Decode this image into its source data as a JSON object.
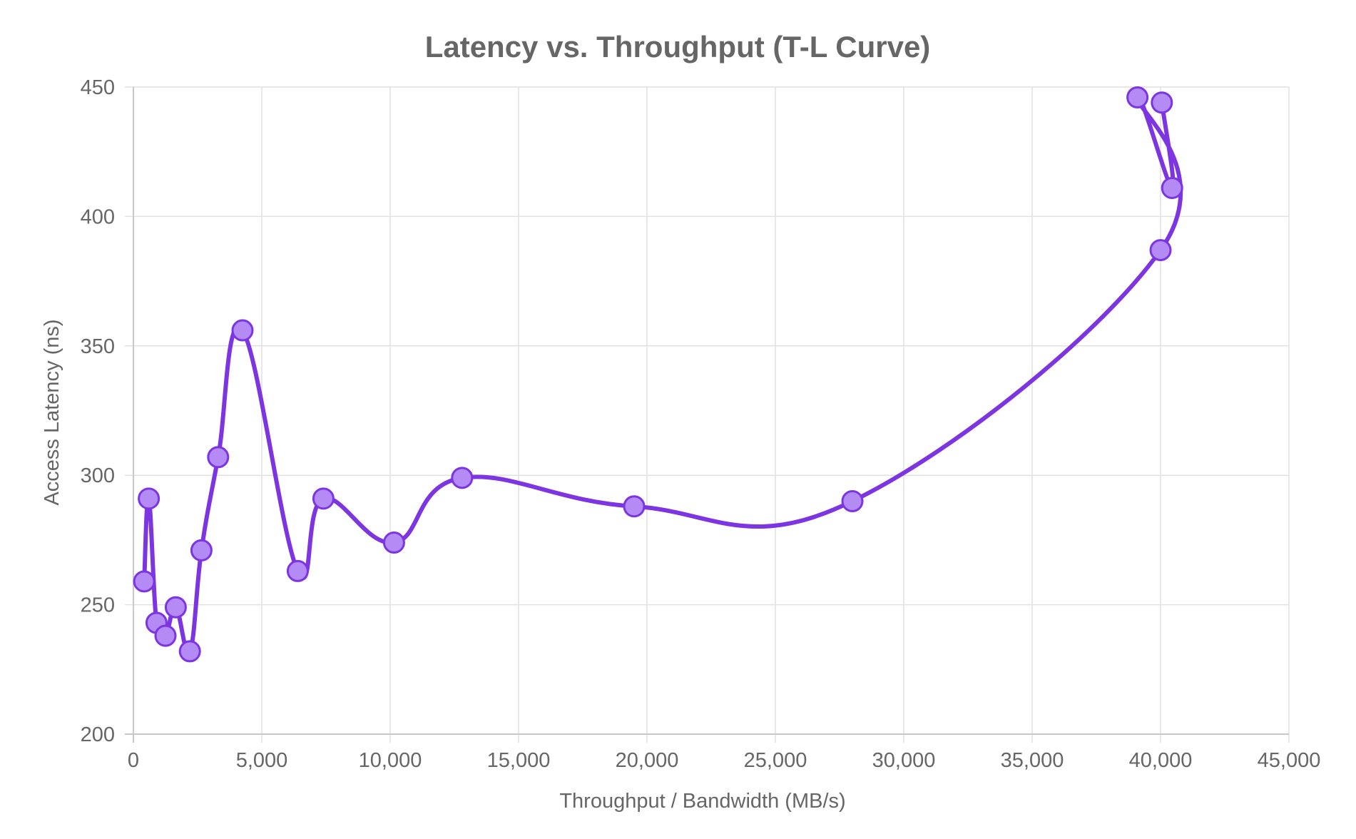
{
  "chart_data": {
    "type": "line",
    "title": "Latency vs. Throughput (T-L Curve)",
    "xlabel": "Throughput / Bandwidth (MB/s)",
    "ylabel": "Access Latency (ns)",
    "xlim": [
      0,
      45000
    ],
    "ylim": [
      200,
      450
    ],
    "x_ticks": [
      0,
      5000,
      10000,
      15000,
      20000,
      25000,
      30000,
      35000,
      40000,
      45000
    ],
    "x_tick_labels": [
      "0",
      "5,000",
      "10,000",
      "15,000",
      "20,000",
      "25,000",
      "30,000",
      "35,000",
      "40,000",
      "45,000"
    ],
    "y_ticks": [
      200,
      250,
      300,
      350,
      400,
      450
    ],
    "y_tick_labels": [
      "200",
      "250",
      "300",
      "350",
      "400",
      "450"
    ],
    "grid": true,
    "legend": "none",
    "smooth": true,
    "colors": {
      "line": "#7c35e0",
      "point_fill": "#b48af5",
      "point_stroke": "#7c35e0"
    },
    "series": [
      {
        "points": [
          {
            "x": 420,
            "y": 259
          },
          {
            "x": 600,
            "y": 291
          },
          {
            "x": 900,
            "y": 243
          },
          {
            "x": 1250,
            "y": 238
          },
          {
            "x": 1650,
            "y": 249
          },
          {
            "x": 2200,
            "y": 232
          },
          {
            "x": 2650,
            "y": 271
          },
          {
            "x": 3300,
            "y": 307
          },
          {
            "x": 4250,
            "y": 356
          },
          {
            "x": 6400,
            "y": 263
          },
          {
            "x": 7400,
            "y": 291
          },
          {
            "x": 10150,
            "y": 274
          },
          {
            "x": 12800,
            "y": 299
          },
          {
            "x": 19500,
            "y": 288
          },
          {
            "x": 28000,
            "y": 290
          },
          {
            "x": 40000,
            "y": 387
          },
          {
            "x": 39100,
            "y": 446
          },
          {
            "x": 40450,
            "y": 411
          },
          {
            "x": 40050,
            "y": 444
          }
        ]
      }
    ]
  }
}
